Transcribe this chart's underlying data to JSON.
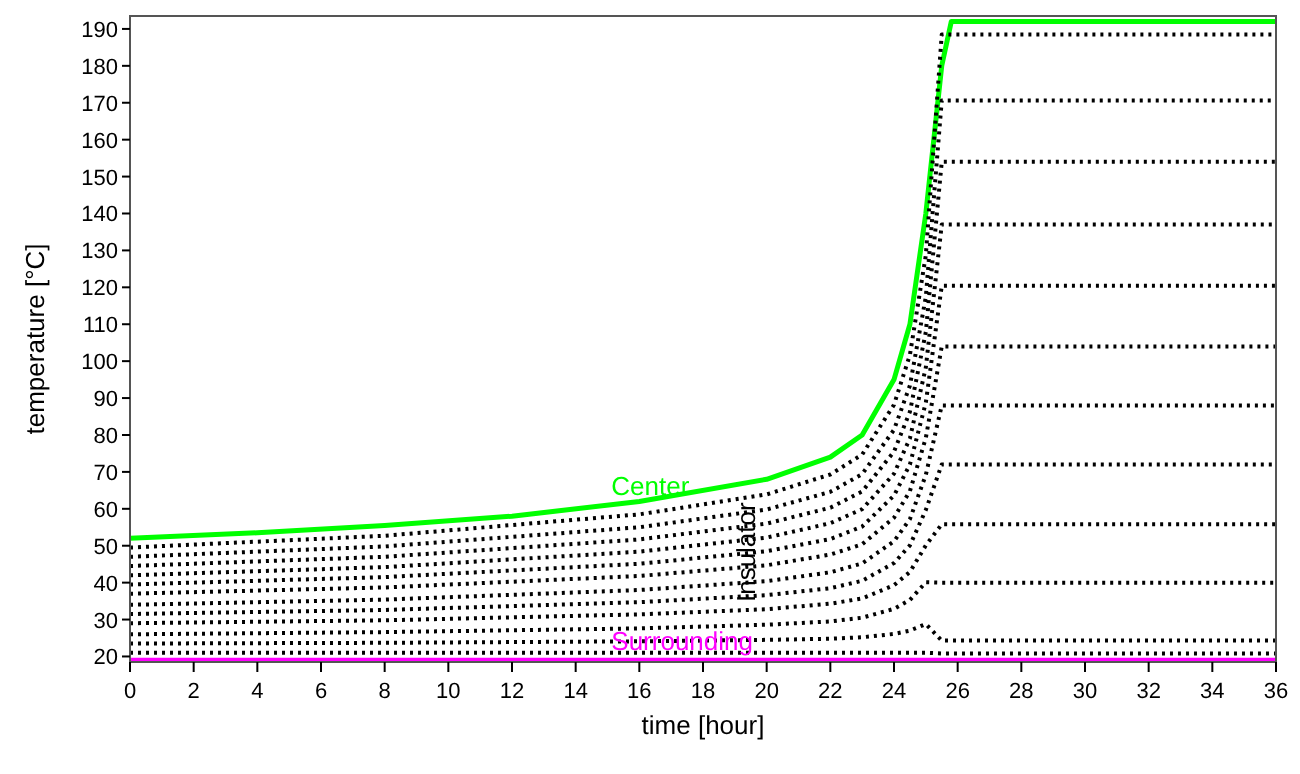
{
  "chart_data": {
    "type": "line",
    "xlabel": "time [hour]",
    "ylabel": "temperature [°C]",
    "xlim": [
      0,
      36
    ],
    "xticks": [
      0,
      2,
      4,
      6,
      8,
      10,
      12,
      14,
      16,
      18,
      20,
      22,
      24,
      26,
      28,
      30,
      32,
      34,
      36
    ],
    "ylim": [
      18.5,
      193.5
    ],
    "yticks": [
      20,
      30,
      40,
      50,
      60,
      70,
      80,
      90,
      100,
      110,
      120,
      130,
      140,
      150,
      160,
      170,
      180,
      190
    ],
    "grid": false,
    "marker": "none",
    "annotations": [
      "Insulator"
    ],
    "series": [
      {
        "name": "Center",
        "color": "#00ff00",
        "line_style": "solid",
        "x": [
          0,
          4,
          8,
          12,
          16,
          20,
          22,
          23,
          24,
          24.5,
          25,
          25.5,
          25.8,
          36
        ],
        "values": [
          52,
          53.5,
          55.5,
          58,
          62,
          68,
          74,
          80,
          95,
          110,
          140,
          180,
          192,
          192
        ]
      },
      {
        "color": "#000000",
        "line_style": "dotted",
        "x": [
          0,
          8,
          16,
          20,
          22,
          23,
          24,
          24.5,
          25,
          25.5,
          36
        ],
        "values": [
          49.5,
          52.7,
          58.5,
          63.9,
          69.3,
          74.7,
          88.2,
          101.7,
          128.7,
          188.5,
          188.5
        ]
      },
      {
        "color": "#000000",
        "line_style": "dotted",
        "x": [
          0,
          8,
          16,
          20,
          22,
          23,
          24,
          24.5,
          25,
          25.5,
          36
        ],
        "values": [
          47,
          49.8,
          55,
          59.8,
          64.6,
          69.4,
          81.4,
          93.4,
          117.4,
          170.6,
          170.6
        ]
      },
      {
        "color": "#000000",
        "line_style": "dotted",
        "x": [
          0,
          8,
          16,
          20,
          22,
          23,
          24,
          24.5,
          25,
          25.5,
          36
        ],
        "values": [
          44.5,
          47,
          51.7,
          56,
          60.3,
          64.7,
          75.5,
          86.3,
          107.9,
          154,
          154
        ]
      },
      {
        "color": "#000000",
        "line_style": "dotted",
        "x": [
          0,
          8,
          16,
          20,
          22,
          23,
          24,
          24.5,
          25,
          25.5,
          36
        ],
        "values": [
          42,
          44.2,
          48.4,
          52.2,
          56.1,
          59.9,
          69.5,
          79.1,
          98.3,
          137,
          137
        ]
      },
      {
        "color": "#000000",
        "line_style": "dotted",
        "x": [
          0,
          8,
          16,
          20,
          22,
          23,
          24,
          24.5,
          25,
          25.5,
          36
        ],
        "values": [
          39.5,
          41.5,
          45.1,
          48.5,
          51.8,
          55.2,
          63.6,
          72,
          88.8,
          120.4,
          120.4
        ]
      },
      {
        "color": "#000000",
        "line_style": "dotted",
        "x": [
          0,
          8,
          16,
          20,
          22,
          23,
          24,
          24.5,
          25,
          25.5,
          36
        ],
        "values": [
          37,
          38.7,
          41.8,
          44.7,
          47.6,
          50.4,
          57.6,
          64.8,
          79.2,
          104,
          104
        ]
      },
      {
        "color": "#000000",
        "line_style": "dotted",
        "x": [
          0,
          8,
          16,
          20,
          22,
          23,
          24,
          24.5,
          25,
          25.5,
          36
        ],
        "values": [
          34,
          35.4,
          38,
          40.4,
          42.8,
          45.2,
          51.2,
          57.2,
          69.2,
          88,
          88
        ]
      },
      {
        "color": "#000000",
        "line_style": "dotted",
        "x": [
          0,
          8,
          16,
          20,
          22,
          23,
          24,
          24.5,
          25,
          25.5,
          36
        ],
        "values": [
          31.5,
          32.6,
          34.7,
          36.6,
          38.5,
          40.5,
          45.3,
          50.1,
          59.7,
          72,
          72
        ]
      },
      {
        "color": "#000000",
        "line_style": "dotted",
        "x": [
          0,
          8,
          16,
          20,
          22,
          23,
          24,
          24.5,
          25,
          25.5,
          36
        ],
        "values": [
          29,
          29.8,
          31.4,
          32.8,
          34.3,
          35.7,
          39.3,
          42.9,
          50.1,
          55.8,
          55.8
        ]
      },
      {
        "color": "#000000",
        "line_style": "dotted",
        "x": [
          0,
          8,
          16,
          20,
          22,
          23,
          24,
          24.5,
          25,
          25.5,
          36
        ],
        "values": [
          26,
          26.6,
          27.6,
          28.6,
          29.5,
          30.5,
          32.9,
          35.3,
          40.1,
          40,
          40
        ]
      },
      {
        "color": "#000000",
        "line_style": "dotted",
        "x": [
          0,
          8,
          16,
          20,
          22,
          23,
          24,
          24.5,
          25,
          25.5,
          36
        ],
        "values": [
          23.5,
          23.7,
          24.1,
          24.5,
          24.8,
          25.2,
          26.1,
          27,
          28.8,
          24.3,
          24.3
        ]
      },
      {
        "color": "#000000",
        "line_style": "dotted",
        "x": [
          0,
          8,
          16,
          20,
          22,
          23,
          24,
          24.5,
          25,
          25.5,
          36
        ],
        "values": [
          21,
          21,
          21,
          21,
          21,
          21,
          21,
          21,
          21,
          20.8,
          20.8
        ]
      },
      {
        "name": "Surrounding",
        "color": "#ff00ff",
        "line_style": "solid",
        "x": [
          0,
          36
        ],
        "values": [
          19,
          19
        ]
      }
    ]
  }
}
